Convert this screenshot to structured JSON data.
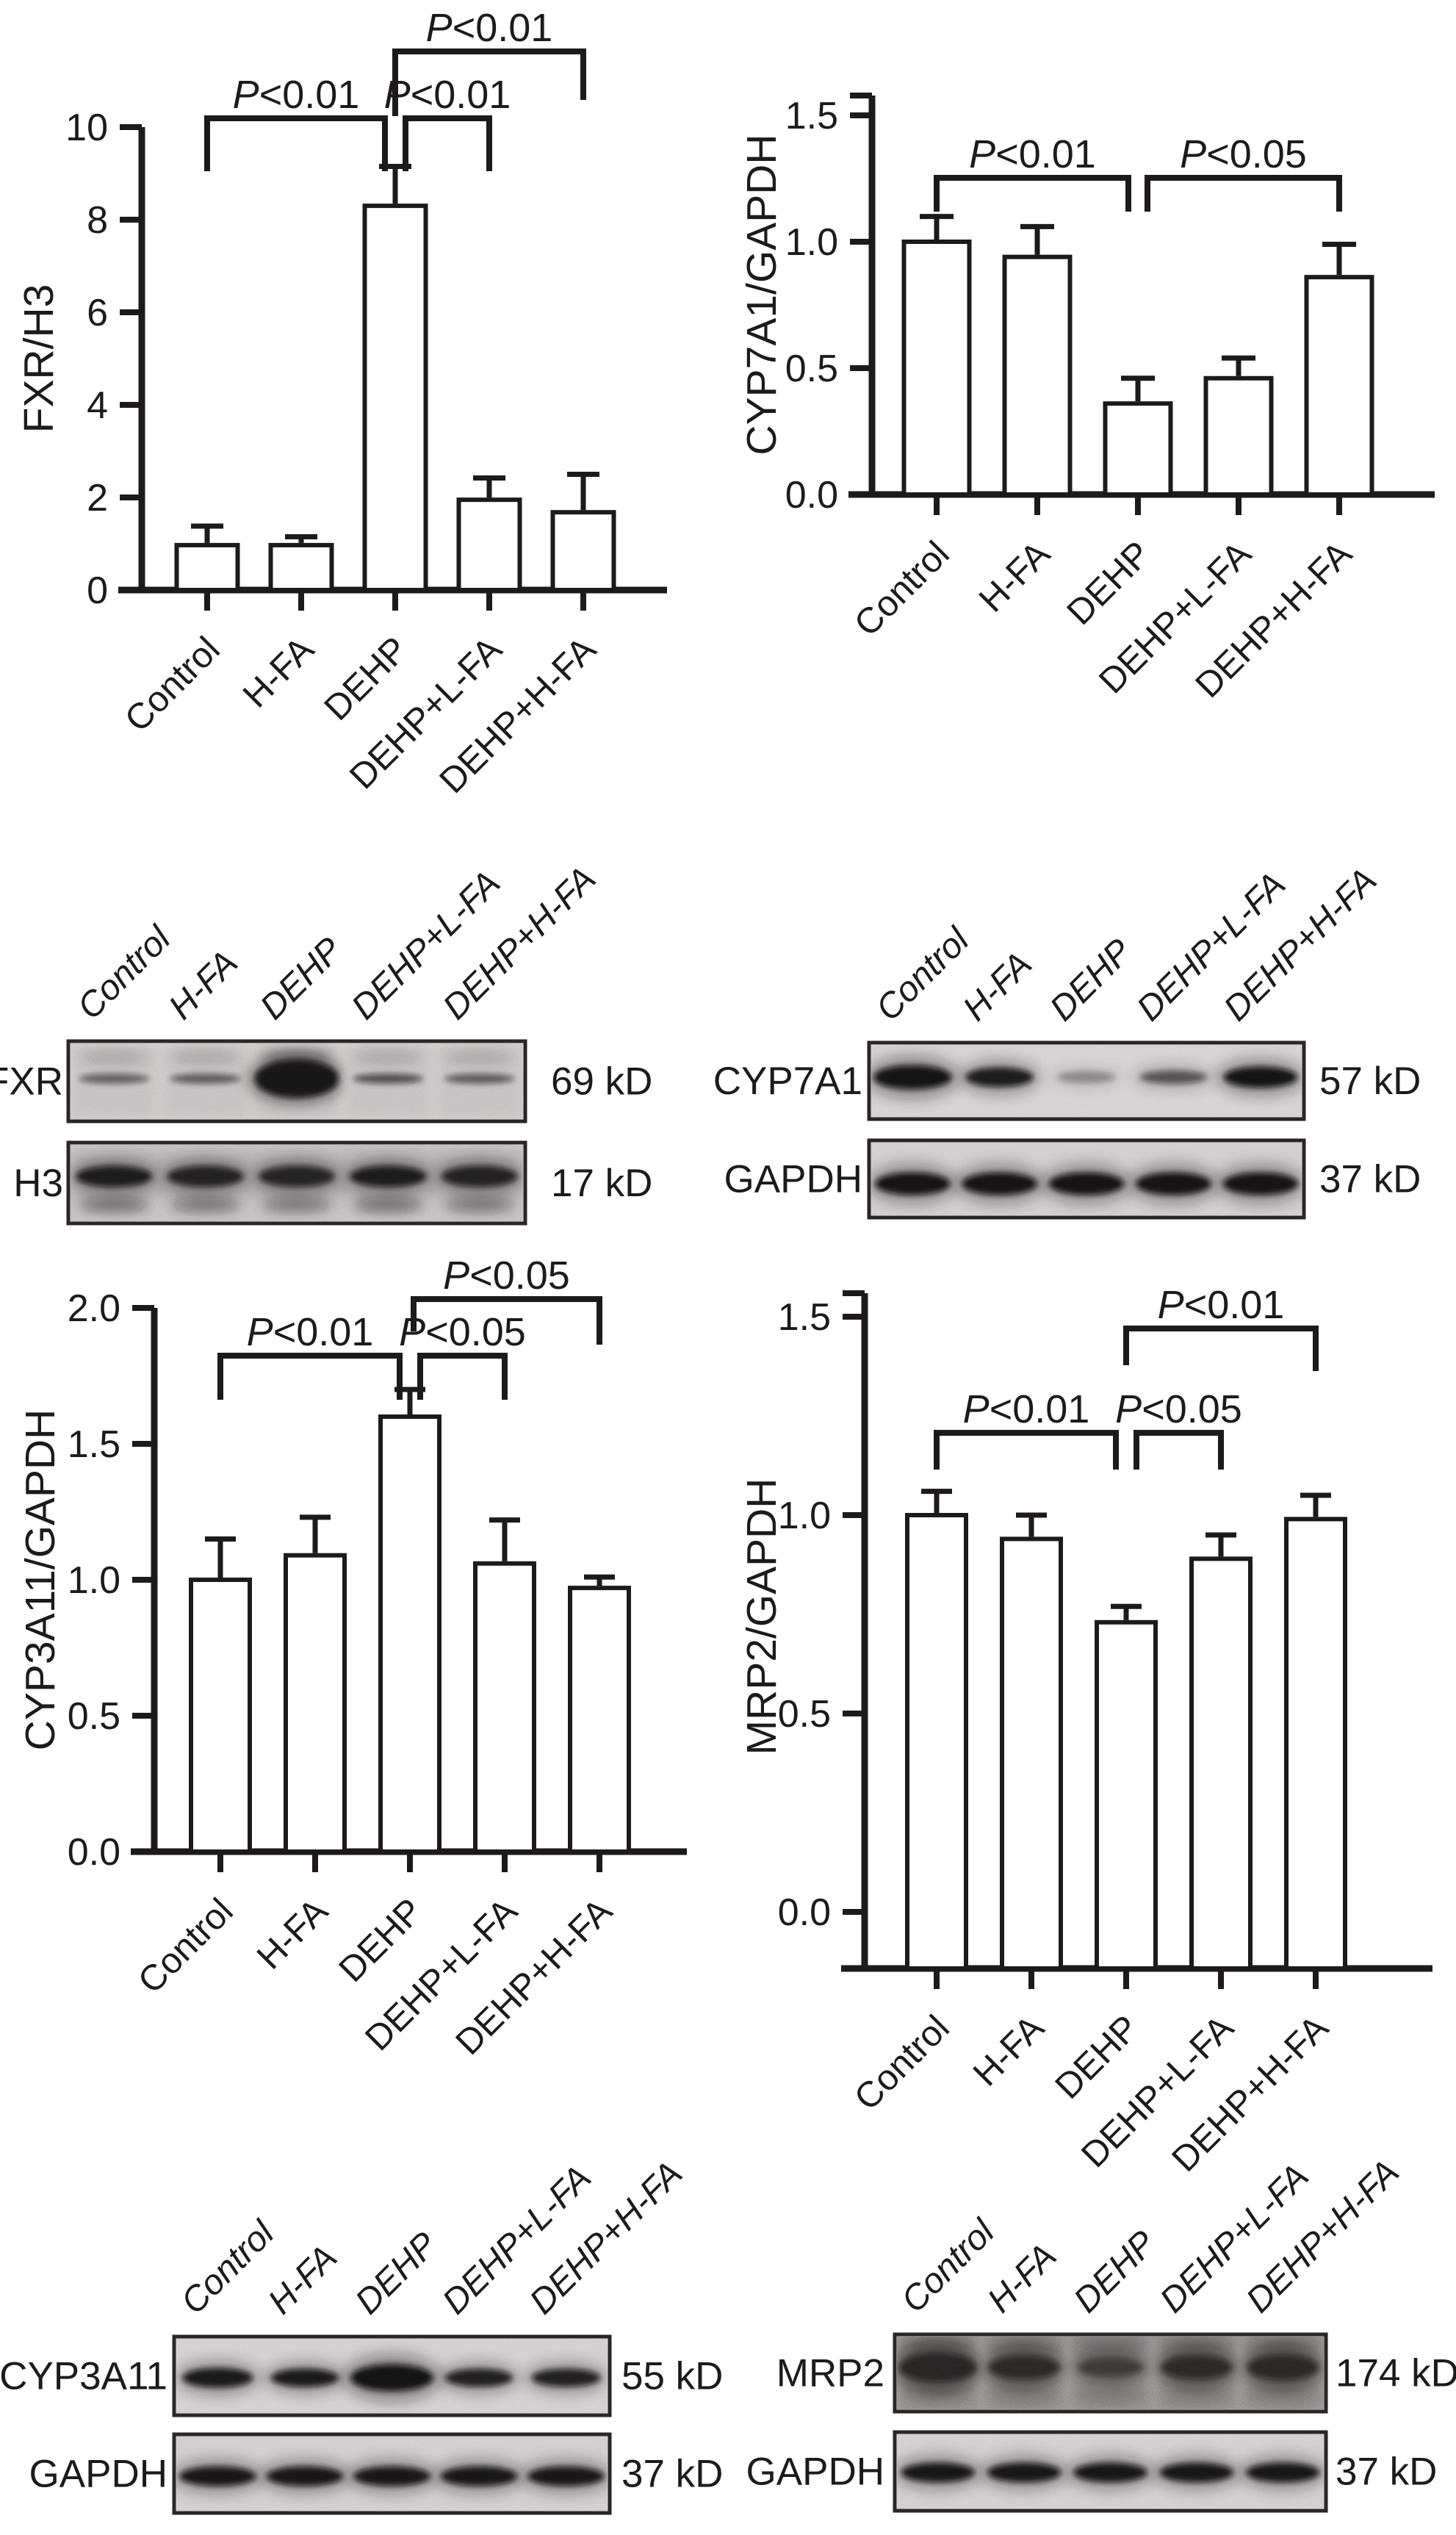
{
  "figure": {
    "background": "#ffffff",
    "ink_color": "#1d1a1b",
    "groups": [
      "Control",
      "H-FA",
      "DEHP",
      "DEHP+L-FA",
      "DEHP+H-FA"
    ]
  },
  "chart_data": [
    {
      "type": "bar",
      "ylabel": "FXR/H3",
      "categories": [
        "Control",
        "H-FA",
        "DEHP",
        "DEHP+L-FA",
        "DEHP+H-FA"
      ],
      "values": [
        0.97,
        0.97,
        8.3,
        1.95,
        1.68
      ],
      "errors": [
        0.41,
        0.18,
        0.85,
        0.47,
        0.82
      ],
      "ylim": [
        0,
        10
      ],
      "yticks": [
        {
          "v": 0,
          "label": "0"
        },
        {
          "v": 2,
          "label": "2"
        },
        {
          "v": 4,
          "label": "4"
        },
        {
          "v": 6,
          "label": "6"
        },
        {
          "v": 8,
          "label": "8"
        },
        {
          "v": 10,
          "label": "10"
        }
      ],
      "grid": false,
      "bar_fill": "#ffffff",
      "legend": null,
      "significance": [
        {
          "from": "Control",
          "to": "DEHP",
          "label": "P<0.01",
          "level": 1
        },
        {
          "from": "DEHP",
          "to": "DEHP+L-FA",
          "label": "P<0.01",
          "level": 1
        },
        {
          "from": "DEHP",
          "to": "DEHP+H-FA",
          "label": "P<0.01",
          "level": 2
        }
      ]
    },
    {
      "type": "bar",
      "ylabel": "CYP7A1/GAPDH",
      "categories": [
        "Control",
        "H-FA",
        "DEHP",
        "DEHP+L-FA",
        "DEHP+H-FA"
      ],
      "values": [
        1.0,
        0.94,
        0.36,
        0.46,
        0.86
      ],
      "errors": [
        0.1,
        0.12,
        0.1,
        0.08,
        0.13
      ],
      "ylim": [
        0,
        1.58
      ],
      "yticks": [
        {
          "v": 0,
          "label": "0.0"
        },
        {
          "v": 0.5,
          "label": "0.5"
        },
        {
          "v": 1,
          "label": "1.0"
        },
        {
          "v": 1.5,
          "label": "1.5"
        }
      ],
      "grid": false,
      "bar_fill": "#ffffff",
      "legend": null,
      "significance": [
        {
          "from": "Control",
          "to": "DEHP",
          "label": "P<0.01",
          "level": 1
        },
        {
          "from": "DEHP",
          "to": "DEHP+H-FA",
          "label": "P<0.05",
          "level": 1
        }
      ]
    },
    {
      "type": "bar",
      "ylabel": "CYP3A11/GAPDH",
      "categories": [
        "Control",
        "H-FA",
        "DEHP",
        "DEHP+L-FA",
        "DEHP+H-FA"
      ],
      "values": [
        1.0,
        1.09,
        1.6,
        1.06,
        0.97
      ],
      "errors": [
        0.15,
        0.14,
        0.1,
        0.16,
        0.04
      ],
      "ylim": [
        0,
        2
      ],
      "yticks": [
        {
          "v": 0,
          "label": "0.0"
        },
        {
          "v": 0.5,
          "label": "0.5"
        },
        {
          "v": 1,
          "label": "1.0"
        },
        {
          "v": 1.5,
          "label": "1.5"
        },
        {
          "v": 2,
          "label": "2.0"
        }
      ],
      "grid": false,
      "bar_fill": "#ffffff",
      "legend": null,
      "significance": [
        {
          "from": "Control",
          "to": "DEHP",
          "label": "P<0.01",
          "level": 1
        },
        {
          "from": "DEHP",
          "to": "DEHP+L-FA",
          "label": "P<0.05",
          "level": 1
        },
        {
          "from": "DEHP",
          "to": "DEHP+H-FA",
          "label": "P<0.05",
          "level": 2
        }
      ]
    },
    {
      "type": "bar",
      "ylabel": "MRP2/GAPDH",
      "categories": [
        "Control",
        "H-FA",
        "DEHP",
        "DEHP+L-FA",
        "DEHP+H-FA"
      ],
      "values": [
        1.0,
        0.94,
        0.73,
        0.89,
        0.99
      ],
      "errors": [
        0.06,
        0.06,
        0.04,
        0.06,
        0.06
      ],
      "ylim": [
        -0.14,
        1.56
      ],
      "baseline_below_zero": true,
      "yticks": [
        {
          "v": 0,
          "label": "0.0"
        },
        {
          "v": 0.5,
          "label": "0.5"
        },
        {
          "v": 1,
          "label": "1.0"
        },
        {
          "v": 1.5,
          "label": "1.5"
        }
      ],
      "grid": false,
      "bar_fill": "#ffffff",
      "legend": null,
      "significance": [
        {
          "from": "Control",
          "to": "DEHP",
          "label": "P<0.01",
          "level": 1
        },
        {
          "from": "DEHP",
          "to": "DEHP+L-FA",
          "label": "P<0.05",
          "level": 1
        },
        {
          "from": "DEHP",
          "to": "DEHP+H-FA",
          "label": "P<0.01",
          "level": 2
        }
      ]
    }
  ],
  "blots": [
    {
      "lanes": [
        "Control",
        "H-FA",
        "DEHP",
        "DEHP+L-FA",
        "DEHP+H-FA"
      ],
      "rows": [
        {
          "label": "FXR",
          "mw": "69 kD",
          "band_intensities": [
            0.35,
            0.38,
            1.0,
            0.45,
            0.38
          ]
        },
        {
          "label": "H3",
          "mw": "17 kD",
          "band_intensities": [
            0.97,
            0.9,
            0.88,
            0.97,
            0.9
          ]
        }
      ]
    },
    {
      "lanes": [
        "Control",
        "H-FA",
        "DEHP",
        "DEHP+L-FA",
        "DEHP+H-FA"
      ],
      "rows": [
        {
          "label": "CYP7A1",
          "mw": "57 kD",
          "band_intensities": [
            1.0,
            0.88,
            0.3,
            0.55,
            0.95
          ]
        },
        {
          "label": "GAPDH",
          "mw": "37 kD",
          "band_intensities": [
            0.95,
            0.95,
            0.95,
            0.95,
            0.95
          ]
        }
      ]
    },
    {
      "lanes": [
        "Control",
        "H-FA",
        "DEHP",
        "DEHP+L-FA",
        "DEHP+H-FA"
      ],
      "rows": [
        {
          "label": "CYP3A11",
          "mw": "55 kD",
          "band_intensities": [
            0.9,
            0.9,
            1.0,
            0.85,
            0.85
          ]
        },
        {
          "label": "GAPDH",
          "mw": "37 kD",
          "band_intensities": [
            0.92,
            0.92,
            0.92,
            0.92,
            0.92
          ]
        }
      ]
    },
    {
      "lanes": [
        "Control",
        "H-FA",
        "DEHP",
        "DEHP+L-FA",
        "DEHP+H-FA"
      ],
      "rows": [
        {
          "label": "MRP2",
          "mw": "174 kD",
          "band_intensities": [
            1.0,
            0.92,
            0.6,
            0.92,
            0.95
          ]
        },
        {
          "label": "GAPDH",
          "mw": "37 kD",
          "band_intensities": [
            0.92,
            0.92,
            0.92,
            0.92,
            0.92
          ]
        }
      ]
    }
  ]
}
